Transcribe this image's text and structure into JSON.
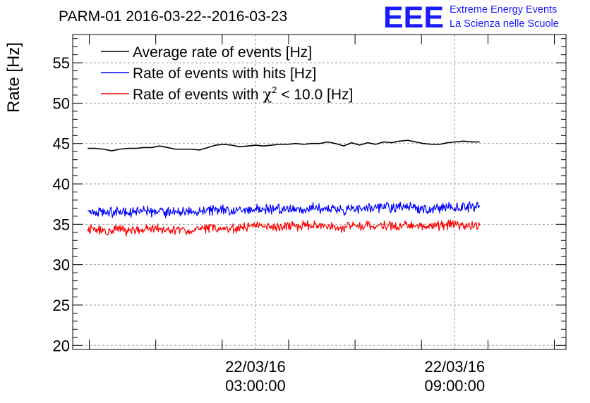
{
  "chart_data": {
    "type": "line",
    "title": "PARM-01 2016-03-22--2016-03-23",
    "ylabel": "Rate [Hz]",
    "xlabel": "",
    "ylim": [
      19.5,
      58.5
    ],
    "xlim_hours": [
      -2.5,
      12.35
    ],
    "grid": true,
    "legend_position": "top-left",
    "y_ticks": [
      20,
      25,
      30,
      35,
      40,
      45,
      50,
      55
    ],
    "x_tick_labels": [
      {
        "hour": 3,
        "date": "22/03/16",
        "time": "03:00:00"
      },
      {
        "hour": 9,
        "date": "22/03/16",
        "time": "09:00:00"
      }
    ],
    "logo": {
      "mark": "EEE",
      "line1": "Extreme Energy Events",
      "line2": "La Scienza nelle Scuole",
      "color": "#1a1aff"
    },
    "series": [
      {
        "name": "Average rate of events [Hz]",
        "color": "#000000",
        "x_start_hour": -2.05,
        "x_end_hour": 9.75,
        "values": [
          44.4,
          44.4,
          44.3,
          44.1,
          44.3,
          44.4,
          44.4,
          44.5,
          44.5,
          44.7,
          44.5,
          44.3,
          44.3,
          44.3,
          44.2,
          44.5,
          44.8,
          44.9,
          44.8,
          44.6,
          44.7,
          44.8,
          44.7,
          44.8,
          44.9,
          44.9,
          45.0,
          44.9,
          45.0,
          45.0,
          45.2,
          45.0,
          44.7,
          45.1,
          44.8,
          45.1,
          44.9,
          45.2,
          45.1,
          45.3,
          45.4,
          45.2,
          45.0,
          44.9,
          44.9,
          45.1,
          45.2,
          45.3,
          45.2,
          45.2
        ],
        "noise": 0
      },
      {
        "name": "Rate of events with hits [Hz]",
        "color": "#0000ff",
        "x_start_hour": -2.05,
        "x_end_hour": 9.75,
        "values": [
          36.6,
          36.5,
          36.4,
          36.5,
          36.6,
          36.4,
          36.5,
          36.6,
          36.5,
          36.7,
          36.4,
          36.5,
          36.5,
          36.4,
          36.6,
          36.7,
          36.8,
          36.8,
          36.7,
          36.8,
          36.8,
          36.9,
          36.8,
          36.9,
          36.9,
          36.9,
          37.0,
          36.9,
          37.0,
          37.0,
          37.0,
          36.9,
          36.8,
          37.1,
          36.9,
          37.1,
          37.0,
          37.1,
          37.0,
          37.2,
          37.2,
          37.0,
          36.9,
          36.9,
          37.0,
          37.1,
          37.1,
          37.2,
          37.1,
          37.1
        ],
        "noise": 0.75
      },
      {
        "name": "Rate of events with χ² < 10.0 [Hz]",
        "legend_prefix": "Rate of events with ",
        "legend_greek": "χ",
        "legend_sup": "2",
        "legend_suffix": " < 10.0 [Hz]",
        "color": "#ff0000",
        "x_start_hour": -2.05,
        "x_end_hour": 9.75,
        "values": [
          34.4,
          34.3,
          34.2,
          34.3,
          34.4,
          34.2,
          34.3,
          34.4,
          34.3,
          34.5,
          34.2,
          34.3,
          34.3,
          34.2,
          34.4,
          34.5,
          34.6,
          34.6,
          34.5,
          34.6,
          34.6,
          34.7,
          34.6,
          34.7,
          34.7,
          34.7,
          34.8,
          34.7,
          34.8,
          34.8,
          34.8,
          34.7,
          34.6,
          34.9,
          34.7,
          34.9,
          34.8,
          34.9,
          34.8,
          35.0,
          35.0,
          34.8,
          34.7,
          34.7,
          34.8,
          34.9,
          34.9,
          35.0,
          34.9,
          34.9
        ],
        "noise": 0.75
      }
    ]
  }
}
